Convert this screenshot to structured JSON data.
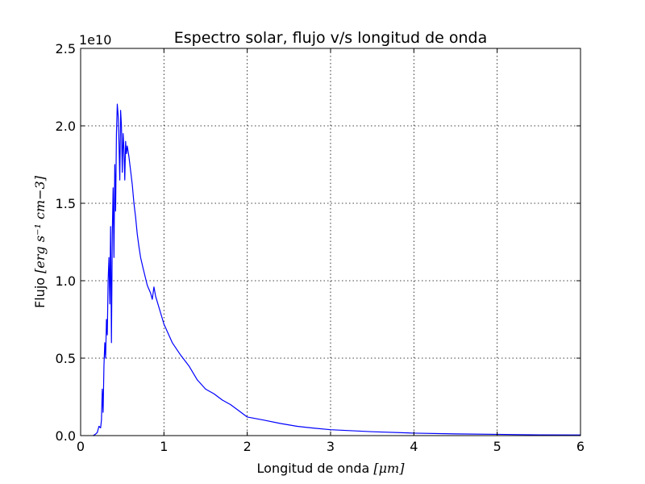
{
  "chart_data": {
    "type": "line",
    "title": "Espectro solar, flujo v/s longitud de onda",
    "xlabel": "Longitud de onda",
    "xlabel_unit": "[μm]",
    "ylabel": "Flujo",
    "ylabel_unit": "[erg s⁻¹ cm−3]",
    "y_offset_text": "1e10",
    "xlim": [
      0,
      6
    ],
    "ylim": [
      0,
      2.5
    ],
    "y_scale_factor": 10000000000.0,
    "grid": true,
    "xticks": [
      0,
      1,
      2,
      3,
      4,
      5,
      6
    ],
    "xtick_labels": [
      "0",
      "1",
      "2",
      "3",
      "4",
      "5",
      "6"
    ],
    "yticks": [
      0,
      0.5,
      1.0,
      1.5,
      2.0,
      2.5
    ],
    "ytick_labels": [
      "0.0",
      "0.5",
      "1.0",
      "1.5",
      "2.0",
      "2.5"
    ],
    "series": [
      {
        "color": "#0000ff",
        "x": [
          0.15,
          0.18,
          0.2,
          0.22,
          0.24,
          0.25,
          0.26,
          0.27,
          0.28,
          0.29,
          0.3,
          0.31,
          0.32,
          0.33,
          0.34,
          0.35,
          0.36,
          0.37,
          0.38,
          0.39,
          0.4,
          0.41,
          0.42,
          0.43,
          0.44,
          0.45,
          0.46,
          0.47,
          0.48,
          0.49,
          0.5,
          0.51,
          0.52,
          0.53,
          0.54,
          0.55,
          0.56,
          0.58,
          0.6,
          0.62,
          0.64,
          0.66,
          0.68,
          0.7,
          0.72,
          0.75,
          0.8,
          0.84,
          0.86,
          0.88,
          0.9,
          0.95,
          1.0,
          1.05,
          1.1,
          1.2,
          1.3,
          1.4,
          1.5,
          1.6,
          1.7,
          1.8,
          1.9,
          2.0,
          2.2,
          2.4,
          2.6,
          2.8,
          3.0,
          3.5,
          4.0,
          4.5,
          5.0,
          5.5,
          6.0
        ],
        "y": [
          0.0,
          0.01,
          0.02,
          0.06,
          0.05,
          0.1,
          0.3,
          0.15,
          0.45,
          0.6,
          0.5,
          0.75,
          0.65,
          1.0,
          1.15,
          0.85,
          1.35,
          0.6,
          1.3,
          1.6,
          1.15,
          1.75,
          1.45,
          1.95,
          2.14,
          2.07,
          1.9,
          1.65,
          2.1,
          2.0,
          1.7,
          1.95,
          1.85,
          1.65,
          1.9,
          1.82,
          1.87,
          1.8,
          1.71,
          1.62,
          1.5,
          1.41,
          1.3,
          1.22,
          1.15,
          1.08,
          0.97,
          0.92,
          0.88,
          0.96,
          0.9,
          0.81,
          0.72,
          0.66,
          0.6,
          0.52,
          0.45,
          0.36,
          0.3,
          0.27,
          0.23,
          0.2,
          0.16,
          0.12,
          0.1,
          0.078,
          0.06,
          0.048,
          0.038,
          0.025,
          0.016,
          0.011,
          0.008,
          0.005,
          0.004
        ]
      }
    ]
  }
}
